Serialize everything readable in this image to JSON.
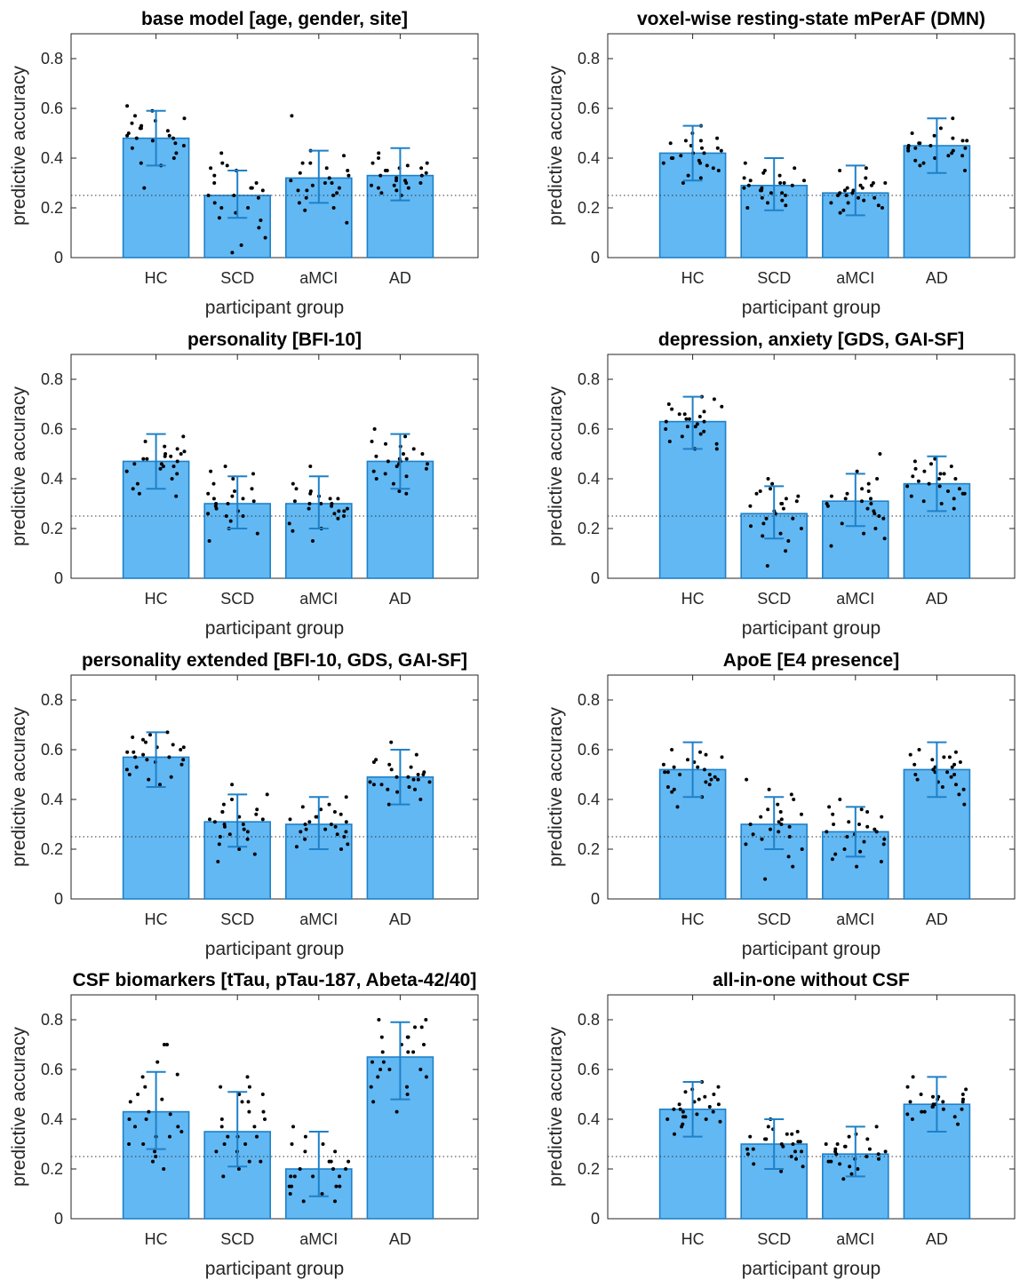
{
  "figure": {
    "bar_color": "#62b8f3",
    "bar_edge_color": "#1f80c8",
    "errorbar_color": "#1f80c8",
    "point_color": "#000000"
  },
  "chart_data": [
    {
      "type": "bar",
      "title": "base model [age, gender, site]",
      "xlabel": "participant group",
      "ylabel": "predictive accuracy",
      "categories": [
        "HC",
        "SCD",
        "aMCI",
        "AD"
      ],
      "values": [
        0.48,
        0.25,
        0.32,
        0.33
      ],
      "error_low": [
        0.37,
        0.16,
        0.22,
        0.23
      ],
      "error_high": [
        0.59,
        0.35,
        0.43,
        0.44
      ],
      "points": [
        [
          0.59,
          0.55,
          0.52,
          0.61,
          0.48,
          0.5,
          0.45,
          0.38,
          0.53,
          0.28,
          0.49,
          0.42,
          0.56,
          0.47,
          0.37,
          0.51,
          0.54,
          0.44,
          0.49,
          0.57,
          0.4,
          0.52,
          0.46,
          0.48
        ],
        [
          0.42,
          0.37,
          0.25,
          0.08,
          0.3,
          0.2,
          0.15,
          0.02,
          0.35,
          0.28,
          0.12,
          0.18,
          0.38,
          0.24,
          0.27,
          0.22,
          0.33,
          0.05,
          0.3,
          0.25,
          0.16,
          0.36,
          0.2,
          0.28
        ],
        [
          0.43,
          0.38,
          0.3,
          0.25,
          0.2,
          0.57,
          0.35,
          0.28,
          0.14,
          0.32,
          0.27,
          0.22,
          0.36,
          0.33,
          0.3,
          0.26,
          0.41,
          0.24,
          0.19,
          0.34,
          0.29,
          0.38,
          0.31,
          0.27
        ],
        [
          0.38,
          0.35,
          0.3,
          0.28,
          0.42,
          0.33,
          0.25,
          0.36,
          0.31,
          0.27,
          0.4,
          0.29,
          0.34,
          0.32,
          0.37,
          0.26,
          0.3,
          0.35,
          0.28,
          0.33,
          0.38,
          0.31,
          0.29,
          0.36
        ]
      ],
      "chance_level": 0.25,
      "ylim": [
        0,
        0.9
      ],
      "yticks": [
        "0",
        "0.2",
        "0.4",
        "0.6",
        "0.8"
      ],
      "grid": false
    },
    {
      "type": "bar",
      "title": "voxel-wise resting-state mPerAF (DMN)",
      "xlabel": "participant group",
      "ylabel": "predictive accuracy",
      "categories": [
        "HC",
        "SCD",
        "aMCI",
        "AD"
      ],
      "values": [
        0.42,
        0.29,
        0.26,
        0.45
      ],
      "error_low": [
        0.31,
        0.19,
        0.17,
        0.34
      ],
      "error_high": [
        0.53,
        0.4,
        0.37,
        0.56
      ],
      "points": [
        [
          0.53,
          0.48,
          0.44,
          0.4,
          0.37,
          0.32,
          0.46,
          0.42,
          0.38,
          0.35,
          0.5,
          0.43,
          0.39,
          0.47,
          0.41,
          0.36,
          0.45,
          0.33,
          0.44,
          0.4,
          0.3,
          0.42,
          0.47,
          0.38
        ],
        [
          0.38,
          0.35,
          0.32,
          0.3,
          0.28,
          0.25,
          0.22,
          0.29,
          0.33,
          0.26,
          0.2,
          0.31,
          0.27,
          0.24,
          0.36,
          0.3,
          0.28,
          0.23,
          0.34,
          0.29,
          0.26,
          0.21,
          0.31,
          0.27
        ],
        [
          0.3,
          0.28,
          0.25,
          0.22,
          0.2,
          0.35,
          0.27,
          0.24,
          0.18,
          0.29,
          0.26,
          0.23,
          0.32,
          0.21,
          0.28,
          0.25,
          0.3,
          0.19,
          0.27,
          0.24,
          0.36,
          0.22,
          0.26,
          0.29
        ],
        [
          0.56,
          0.5,
          0.46,
          0.43,
          0.4,
          0.35,
          0.47,
          0.44,
          0.41,
          0.38,
          0.48,
          0.45,
          0.42,
          0.52,
          0.44,
          0.39,
          0.46,
          0.43,
          0.37,
          0.49,
          0.45,
          0.41,
          0.47,
          0.44
        ]
      ],
      "chance_level": 0.25,
      "ylim": [
        0,
        0.9
      ],
      "yticks": [
        "0",
        "0.2",
        "0.4",
        "0.6",
        "0.8"
      ],
      "grid": false
    },
    {
      "type": "bar",
      "title": "personality [BFI-10]",
      "xlabel": "participant group",
      "ylabel": "predictive accuracy",
      "categories": [
        "HC",
        "SCD",
        "aMCI",
        "AD"
      ],
      "values": [
        0.47,
        0.3,
        0.3,
        0.47
      ],
      "error_low": [
        0.36,
        0.2,
        0.2,
        0.36
      ],
      "error_high": [
        0.58,
        0.41,
        0.41,
        0.58
      ],
      "points": [
        [
          0.57,
          0.52,
          0.48,
          0.45,
          0.42,
          0.38,
          0.33,
          0.5,
          0.46,
          0.43,
          0.55,
          0.49,
          0.36,
          0.47,
          0.51,
          0.44,
          0.4,
          0.53,
          0.48,
          0.45,
          0.34,
          0.5,
          0.46,
          0.49
        ],
        [
          0.45,
          0.4,
          0.35,
          0.32,
          0.28,
          0.25,
          0.2,
          0.15,
          0.38,
          0.3,
          0.27,
          0.23,
          0.42,
          0.33,
          0.29,
          0.36,
          0.26,
          0.31,
          0.18,
          0.34,
          0.3,
          0.43,
          0.25,
          0.32
        ],
        [
          0.45,
          0.38,
          0.34,
          0.3,
          0.27,
          0.24,
          0.2,
          0.15,
          0.32,
          0.29,
          0.26,
          0.36,
          0.31,
          0.28,
          0.22,
          0.33,
          0.3,
          0.25,
          0.35,
          0.28,
          0.19,
          0.32,
          0.27,
          0.3
        ],
        [
          0.6,
          0.55,
          0.5,
          0.47,
          0.44,
          0.4,
          0.35,
          0.52,
          0.48,
          0.45,
          0.42,
          0.57,
          0.49,
          0.46,
          0.38,
          0.53,
          0.47,
          0.43,
          0.5,
          0.34,
          0.46,
          0.41,
          0.54,
          0.48
        ]
      ],
      "chance_level": 0.25,
      "ylim": [
        0,
        0.9
      ],
      "yticks": [
        "0",
        "0.2",
        "0.4",
        "0.6",
        "0.8"
      ],
      "grid": false
    },
    {
      "type": "bar",
      "title": "depression, anxiety [GDS, GAI-SF]",
      "xlabel": "participant group",
      "ylabel": "predictive accuracy",
      "categories": [
        "HC",
        "SCD",
        "aMCI",
        "AD"
      ],
      "values": [
        0.63,
        0.26,
        0.31,
        0.38
      ],
      "error_low": [
        0.52,
        0.16,
        0.21,
        0.27
      ],
      "error_high": [
        0.73,
        0.37,
        0.42,
        0.49
      ],
      "points": [
        [
          0.73,
          0.7,
          0.67,
          0.64,
          0.61,
          0.58,
          0.55,
          0.52,
          0.69,
          0.66,
          0.63,
          0.6,
          0.57,
          0.72,
          0.65,
          0.62,
          0.59,
          0.54,
          0.68,
          0.64,
          0.61,
          0.52,
          0.66,
          0.63
        ],
        [
          0.4,
          0.36,
          0.33,
          0.3,
          0.27,
          0.24,
          0.21,
          0.18,
          0.15,
          0.05,
          0.38,
          0.31,
          0.26,
          0.22,
          0.34,
          0.29,
          0.2,
          0.11,
          0.35,
          0.28,
          0.24,
          0.32,
          0.17,
          0.3
        ],
        [
          0.5,
          0.43,
          0.38,
          0.35,
          0.32,
          0.29,
          0.26,
          0.22,
          0.18,
          0.13,
          0.4,
          0.33,
          0.3,
          0.27,
          0.36,
          0.31,
          0.24,
          0.2,
          0.34,
          0.28,
          0.16,
          0.32,
          0.25,
          0.3
        ],
        [
          0.48,
          0.45,
          0.42,
          0.4,
          0.37,
          0.34,
          0.31,
          0.28,
          0.44,
          0.41,
          0.38,
          0.35,
          0.32,
          0.46,
          0.43,
          0.39,
          0.36,
          0.33,
          0.3,
          0.47,
          0.4,
          0.37,
          0.34,
          0.42
        ]
      ],
      "chance_level": 0.25,
      "ylim": [
        0,
        0.9
      ],
      "yticks": [
        "0",
        "0.2",
        "0.4",
        "0.6",
        "0.8"
      ],
      "grid": false
    },
    {
      "type": "bar",
      "title": "personality extended [BFI-10, GDS, GAI-SF]",
      "xlabel": "participant group",
      "ylabel": "predictive accuracy",
      "categories": [
        "HC",
        "SCD",
        "aMCI",
        "AD"
      ],
      "values": [
        0.57,
        0.31,
        0.3,
        0.49
      ],
      "error_low": [
        0.45,
        0.21,
        0.2,
        0.38
      ],
      "error_high": [
        0.67,
        0.42,
        0.41,
        0.6
      ],
      "points": [
        [
          0.67,
          0.64,
          0.61,
          0.58,
          0.55,
          0.52,
          0.49,
          0.46,
          0.63,
          0.6,
          0.57,
          0.54,
          0.5,
          0.66,
          0.62,
          0.59,
          0.56,
          0.48,
          0.65,
          0.61,
          0.57,
          0.53,
          0.59,
          0.56
        ],
        [
          0.46,
          0.42,
          0.38,
          0.35,
          0.32,
          0.29,
          0.26,
          0.22,
          0.18,
          0.15,
          0.4,
          0.33,
          0.3,
          0.27,
          0.36,
          0.31,
          0.24,
          0.2,
          0.34,
          0.28,
          0.32,
          0.25,
          0.35,
          0.3
        ],
        [
          0.41,
          0.37,
          0.34,
          0.31,
          0.28,
          0.25,
          0.22,
          0.2,
          0.38,
          0.33,
          0.3,
          0.27,
          0.24,
          0.36,
          0.32,
          0.29,
          0.26,
          0.21,
          0.35,
          0.3,
          0.27,
          0.33,
          0.28,
          0.31
        ],
        [
          0.63,
          0.58,
          0.54,
          0.5,
          0.47,
          0.44,
          0.4,
          0.56,
          0.52,
          0.49,
          0.46,
          0.43,
          0.55,
          0.51,
          0.48,
          0.45,
          0.38,
          0.53,
          0.49,
          0.46,
          0.5,
          0.47,
          0.44,
          0.48
        ]
      ],
      "chance_level": 0.25,
      "ylim": [
        0,
        0.9
      ],
      "yticks": [
        "0",
        "0.2",
        "0.4",
        "0.6",
        "0.8"
      ],
      "grid": false
    },
    {
      "type": "bar",
      "title": "ApoE [E4 presence]",
      "xlabel": "participant group",
      "ylabel": "predictive accuracy",
      "categories": [
        "HC",
        "SCD",
        "aMCI",
        "AD"
      ],
      "values": [
        0.52,
        0.3,
        0.27,
        0.52
      ],
      "error_low": [
        0.41,
        0.2,
        0.17,
        0.41
      ],
      "error_high": [
        0.63,
        0.41,
        0.37,
        0.63
      ],
      "points": [
        [
          0.6,
          0.57,
          0.54,
          0.51,
          0.48,
          0.45,
          0.41,
          0.37,
          0.59,
          0.55,
          0.52,
          0.49,
          0.46,
          0.43,
          0.58,
          0.53,
          0.5,
          0.47,
          0.44,
          0.56,
          0.51,
          0.48,
          0.53,
          0.5
        ],
        [
          0.48,
          0.44,
          0.4,
          0.36,
          0.33,
          0.3,
          0.27,
          0.24,
          0.2,
          0.17,
          0.13,
          0.08,
          0.38,
          0.32,
          0.29,
          0.26,
          0.22,
          0.35,
          0.3,
          0.25,
          0.42,
          0.28,
          0.34,
          0.31
        ],
        [
          0.4,
          0.37,
          0.34,
          0.31,
          0.28,
          0.25,
          0.22,
          0.19,
          0.16,
          0.13,
          0.35,
          0.3,
          0.27,
          0.24,
          0.2,
          0.33,
          0.29,
          0.26,
          0.18,
          0.36,
          0.23,
          0.3,
          0.15,
          0.27
        ],
        [
          0.6,
          0.57,
          0.54,
          0.51,
          0.48,
          0.45,
          0.42,
          0.38,
          0.59,
          0.56,
          0.53,
          0.5,
          0.47,
          0.44,
          0.58,
          0.55,
          0.52,
          0.49,
          0.46,
          0.57,
          0.53,
          0.5,
          0.54,
          0.51
        ]
      ],
      "chance_level": 0.25,
      "ylim": [
        0,
        0.9
      ],
      "yticks": [
        "0",
        "0.2",
        "0.4",
        "0.6",
        "0.8"
      ],
      "grid": false
    },
    {
      "type": "bar",
      "title": "CSF biomarkers [tTau, pTau-187, Abeta-42/40]",
      "xlabel": "participant group",
      "ylabel": "predictive accuracy",
      "categories": [
        "HC",
        "SCD",
        "aMCI",
        "AD"
      ],
      "values": [
        0.43,
        0.35,
        0.2,
        0.65
      ],
      "error_low": [
        0.28,
        0.21,
        0.09,
        0.48
      ],
      "error_high": [
        0.59,
        0.51,
        0.35,
        0.79
      ],
      "points": [
        [
          0.7,
          0.63,
          0.58,
          0.53,
          0.48,
          0.43,
          0.4,
          0.37,
          0.33,
          0.3,
          0.27,
          0.23,
          0.2,
          0.7,
          0.57,
          0.47,
          0.42,
          0.35,
          0.3,
          0.25,
          0.5,
          0.4,
          0.33,
          0.37
        ],
        [
          0.57,
          0.53,
          0.5,
          0.47,
          0.43,
          0.4,
          0.37,
          0.33,
          0.3,
          0.27,
          0.23,
          0.2,
          0.17,
          0.53,
          0.47,
          0.4,
          0.33,
          0.27,
          0.43,
          0.3,
          0.37,
          0.23,
          0.5,
          0.33
        ],
        [
          0.37,
          0.33,
          0.3,
          0.27,
          0.23,
          0.2,
          0.17,
          0.13,
          0.1,
          0.07,
          0.3,
          0.23,
          0.17,
          0.13,
          0.27,
          0.2,
          0.13,
          0.1,
          0.23,
          0.17,
          0.13,
          0.2,
          0.07,
          0.17
        ],
        [
          0.8,
          0.77,
          0.73,
          0.7,
          0.67,
          0.63,
          0.6,
          0.57,
          0.53,
          0.5,
          0.47,
          0.43,
          0.8,
          0.73,
          0.67,
          0.6,
          0.53,
          0.77,
          0.7,
          0.63,
          0.57,
          0.73,
          0.67,
          0.6
        ]
      ],
      "chance_level": 0.25,
      "ylim": [
        0,
        0.9
      ],
      "yticks": [
        "0",
        "0.2",
        "0.4",
        "0.6",
        "0.8"
      ],
      "grid": false
    },
    {
      "type": "bar",
      "title": "all-in-one without CSF",
      "xlabel": "participant group",
      "ylabel": "predictive accuracy",
      "categories": [
        "HC",
        "SCD",
        "aMCI",
        "AD"
      ],
      "values": [
        0.44,
        0.3,
        0.26,
        0.46
      ],
      "error_low": [
        0.33,
        0.2,
        0.17,
        0.35
      ],
      "error_high": [
        0.55,
        0.4,
        0.37,
        0.57
      ],
      "points": [
        [
          0.55,
          0.52,
          0.49,
          0.46,
          0.43,
          0.4,
          0.37,
          0.34,
          0.51,
          0.47,
          0.44,
          0.41,
          0.38,
          0.53,
          0.45,
          0.42,
          0.39,
          0.48,
          0.44,
          0.41,
          0.5,
          0.46,
          0.43,
          0.4
        ],
        [
          0.4,
          0.37,
          0.34,
          0.31,
          0.28,
          0.25,
          0.22,
          0.19,
          0.36,
          0.33,
          0.3,
          0.27,
          0.24,
          0.35,
          0.32,
          0.29,
          0.26,
          0.21,
          0.34,
          0.3,
          0.28,
          0.32,
          0.27,
          0.31
        ],
        [
          0.37,
          0.33,
          0.3,
          0.27,
          0.24,
          0.21,
          0.18,
          0.16,
          0.32,
          0.29,
          0.26,
          0.23,
          0.2,
          0.3,
          0.28,
          0.25,
          0.22,
          0.34,
          0.27,
          0.24,
          0.29,
          0.26,
          0.23,
          0.28
        ],
        [
          0.57,
          0.53,
          0.5,
          0.47,
          0.44,
          0.41,
          0.38,
          0.52,
          0.49,
          0.46,
          0.43,
          0.4,
          0.5,
          0.47,
          0.45,
          0.42,
          0.48,
          0.46,
          0.44,
          0.49,
          0.47,
          0.45,
          0.43,
          0.48
        ]
      ],
      "chance_level": 0.25,
      "ylim": [
        0,
        0.9
      ],
      "yticks": [
        "0",
        "0.2",
        "0.4",
        "0.6",
        "0.8"
      ],
      "grid": false
    }
  ]
}
